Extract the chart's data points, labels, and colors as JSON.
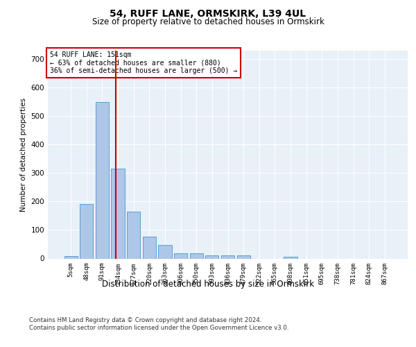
{
  "title": "54, RUFF LANE, ORMSKIRK, L39 4UL",
  "subtitle": "Size of property relative to detached houses in Ormskirk",
  "xlabel": "Distribution of detached houses by size in Ormskirk",
  "ylabel": "Number of detached properties",
  "bar_labels": [
    "5sqm",
    "48sqm",
    "91sqm",
    "134sqm",
    "177sqm",
    "220sqm",
    "263sqm",
    "306sqm",
    "350sqm",
    "393sqm",
    "436sqm",
    "479sqm",
    "522sqm",
    "565sqm",
    "608sqm",
    "651sqm",
    "695sqm",
    "738sqm",
    "781sqm",
    "824sqm",
    "867sqm"
  ],
  "bar_values": [
    8,
    190,
    548,
    315,
    165,
    76,
    47,
    19,
    18,
    12,
    12,
    12,
    0,
    0,
    5,
    0,
    0,
    0,
    0,
    0,
    0
  ],
  "bar_color": "#aec6e8",
  "bar_edge_color": "#5a9fd4",
  "vline_x": 3,
  "vline_color": "#cc0000",
  "annotation_text": "54 RUFF LANE: 151sqm\n← 63% of detached houses are smaller (880)\n36% of semi-detached houses are larger (500) →",
  "annotation_box_color": "#ffffff",
  "annotation_box_edge": "#cc0000",
  "ylim": [
    0,
    730
  ],
  "yticks": [
    0,
    100,
    200,
    300,
    400,
    500,
    600,
    700
  ],
  "background_color": "#e8f0f8",
  "footer": "Contains HM Land Registry data © Crown copyright and database right 2024.\nContains public sector information licensed under the Open Government Licence v3.0."
}
